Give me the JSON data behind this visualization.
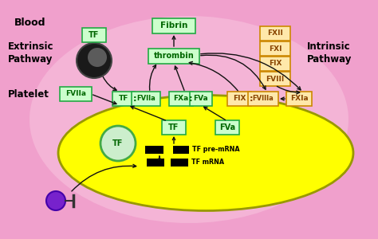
{
  "bg_color": "#f0a0cc",
  "blood_label": "Blood",
  "platelet_label": "Platelet",
  "extrinsic_label": "Extrinsic\nPathway",
  "intrinsic_label": "Intrinsic\nPathway",
  "fibrin_label": "Fibrin",
  "thrombin_label": "thrombin",
  "tf_label": "TF",
  "fviia_label": "FVIIa",
  "intrinsic_factors": [
    "FXII",
    "FXI",
    "FIX",
    "FVIII"
  ],
  "tf_platelet_label": "TF",
  "fva_platelet_label": "FVa",
  "tf_premrna_label": "TF pre-mRNA",
  "tf_mrna_label": "TF mRNA",
  "green_box_bg": "#ccffcc",
  "green_box_border": "#22aa44",
  "green_text": "#006600",
  "orange_box_bg": "#ffe8aa",
  "orange_box_border": "#cc8800",
  "orange_text": "#884400",
  "yellow_platelet": "#ffff00",
  "platelet_border": "#999900",
  "arrow_color": "#111111",
  "figw": 4.74,
  "figh": 3.0,
  "dpi": 100
}
